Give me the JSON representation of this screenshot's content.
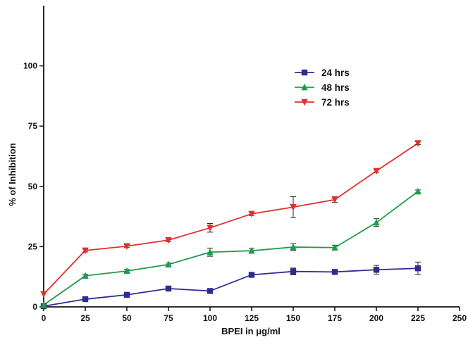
{
  "chart_data": {
    "type": "line",
    "title": "",
    "xlabel": "BPEI in μg/ml",
    "ylabel": "% of Inhibition",
    "xlim": [
      0,
      250
    ],
    "ylim": [
      0,
      125
    ],
    "x_ticks": [
      "0",
      "25",
      "50",
      "75",
      "100",
      "125",
      "150",
      "175",
      "200",
      "225",
      "250"
    ],
    "y_ticks": [
      "0",
      "25",
      "50",
      "75",
      "100"
    ],
    "grid": false,
    "legend_position": "top-right",
    "x": [
      0,
      25,
      50,
      75,
      100,
      125,
      150,
      175,
      200,
      225
    ],
    "series": [
      {
        "name": "24 hrs",
        "color": "#2e2d8f",
        "marker": "square",
        "values": [
          0.3,
          3.2,
          5.0,
          7.6,
          6.6,
          13.3,
          14.7,
          14.5,
          15.4,
          16.0
        ],
        "errors": [
          0.4,
          0.5,
          0.6,
          0.6,
          0.6,
          0.9,
          1.4,
          0.8,
          1.8,
          2.6
        ]
      },
      {
        "name": "48 hrs",
        "color": "#1f9a4a",
        "marker": "triangle-up",
        "values": [
          0.8,
          12.9,
          14.9,
          17.6,
          22.7,
          23.3,
          24.8,
          24.6,
          35.0,
          47.9
        ],
        "errors": [
          0.5,
          0.6,
          0.6,
          0.6,
          1.7,
          1.0,
          1.4,
          0.9,
          1.6,
          0.6
        ]
      },
      {
        "name": "72 hrs",
        "color": "#e0302a",
        "marker": "triangle-down",
        "values": [
          5.3,
          23.4,
          25.2,
          27.7,
          32.8,
          38.6,
          41.4,
          44.5,
          56.4,
          67.9
        ],
        "errors": [
          0.4,
          0.6,
          0.6,
          0.6,
          1.8,
          0.7,
          4.3,
          1.2,
          0.6,
          0.6
        ]
      }
    ]
  }
}
